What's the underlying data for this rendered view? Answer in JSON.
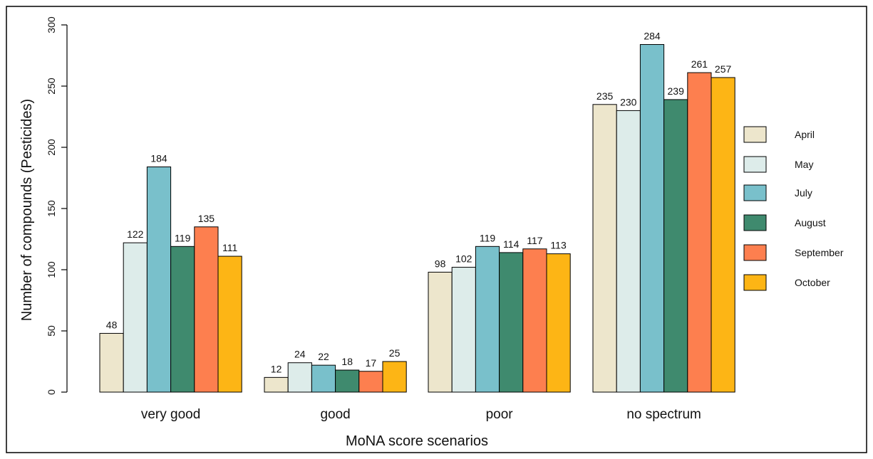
{
  "chart_data": {
    "type": "bar",
    "title": "",
    "xlabel": "MoNA score scenarios",
    "ylabel": "Number of compounds (Pesticides)",
    "ylim": [
      0,
      300
    ],
    "yticks": [
      0,
      50,
      100,
      150,
      200,
      250,
      300
    ],
    "grid": false,
    "legend_position": "right",
    "categories": [
      "very good",
      "good",
      "poor",
      "no spectrum"
    ],
    "series": [
      {
        "name": "April",
        "color": "#ede6cc",
        "values": [
          48,
          12,
          98,
          235
        ]
      },
      {
        "name": "May",
        "color": "#ddecea",
        "values": [
          122,
          24,
          102,
          230
        ]
      },
      {
        "name": "July",
        "color": "#79c0cb",
        "values": [
          184,
          22,
          119,
          284
        ]
      },
      {
        "name": "August",
        "color": "#3f8a6e",
        "values": [
          119,
          18,
          114,
          239
        ]
      },
      {
        "name": "September",
        "color": "#fd7f4f",
        "values": [
          135,
          17,
          117,
          261
        ]
      },
      {
        "name": "October",
        "color": "#fdb515",
        "values": [
          111,
          25,
          113,
          257
        ]
      }
    ]
  }
}
